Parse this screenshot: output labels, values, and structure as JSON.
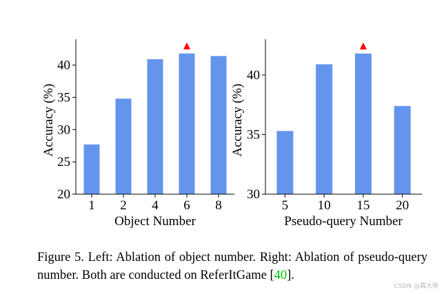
{
  "chart_data": [
    {
      "type": "bar",
      "title": "",
      "categories": [
        "1",
        "2",
        "4",
        "6",
        "8"
      ],
      "values": [
        27.7,
        34.8,
        40.9,
        41.8,
        41.4
      ],
      "xlabel": "Object Number",
      "ylabel": "Accuracy (%)",
      "ylim": [
        20,
        44
      ],
      "yticks": [
        20,
        25,
        30,
        35,
        40
      ],
      "best_marker_index": 3,
      "grid": false
    },
    {
      "type": "bar",
      "title": "",
      "categories": [
        "5",
        "10",
        "15",
        "20"
      ],
      "values": [
        35.3,
        40.9,
        41.8,
        37.4
      ],
      "xlabel": "Pseudo-query Number",
      "ylabel": "Accuracy (%)",
      "ylim": [
        30,
        43
      ],
      "yticks": [
        30,
        35,
        40
      ],
      "best_marker_index": 2,
      "grid": false
    }
  ],
  "colors": {
    "bar": "#6495ED",
    "marker": "#ff0000",
    "axis": "#000000",
    "citation": "#00c000"
  },
  "caption": {
    "text_before": "Figure 5.  Left: Ablation of object number.  Right: Ablation of pseudo-query number. Both are conducted on ReferItGame [",
    "citation": "40",
    "text_after": "]."
  },
  "watermark": "CSDN @霖大侠"
}
